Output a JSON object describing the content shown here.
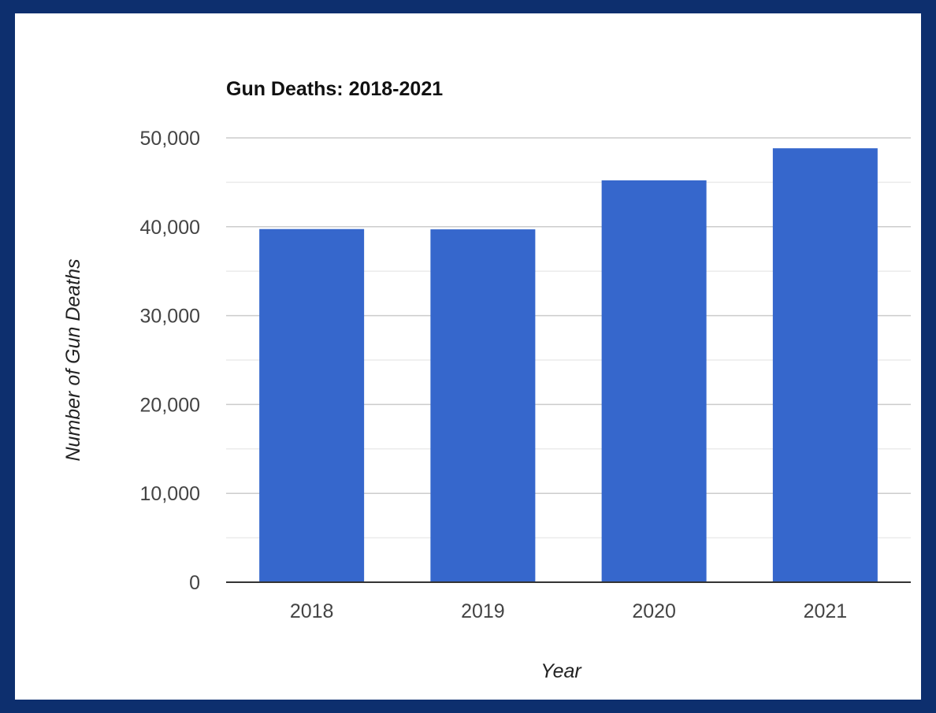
{
  "chart_data": {
    "type": "bar",
    "title": "Gun Deaths: 2018-2021",
    "xlabel": "Year",
    "ylabel": "Number of Gun Deaths",
    "categories": [
      "2018",
      "2019",
      "2020",
      "2021"
    ],
    "values": [
      39740,
      39707,
      45222,
      48830
    ],
    "ylim": [
      0,
      50000
    ],
    "yticks": [
      0,
      10000,
      20000,
      30000,
      40000,
      50000
    ],
    "ytick_labels": [
      "0",
      "10,000",
      "20,000",
      "30,000",
      "40,000",
      "50,000"
    ],
    "grid": true,
    "legend": "none",
    "bar_color": "#3667cc"
  },
  "colors": {
    "background": "#0d2f6e",
    "card": "#ffffff",
    "major_grid": "#cccccc",
    "minor_grid": "#ebebeb",
    "axis": "#333333"
  }
}
